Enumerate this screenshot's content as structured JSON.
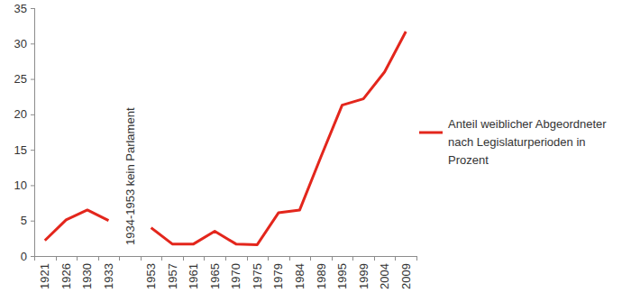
{
  "chart_data": {
    "type": "line",
    "annotation": "1934-1953 kein Parlament",
    "categories": [
      "1921",
      "1926",
      "1930",
      "1933",
      null,
      "1953",
      "1957",
      "1961",
      "1965",
      "1970",
      "1975",
      "1979",
      "1984",
      "1989",
      "1995",
      "1999",
      "2004",
      "2009"
    ],
    "series": [
      {
        "name": "Anteil weiblicher Abgeordneter nach Legislaturperioden in Prozent",
        "color": "#e3261c",
        "values": [
          2.2,
          5.1,
          6.5,
          5.0,
          null,
          4.0,
          1.7,
          1.7,
          3.5,
          1.7,
          1.6,
          6.1,
          6.5,
          14.0,
          21.3,
          22.2,
          26.0,
          31.7
        ]
      }
    ],
    "ylim": [
      0,
      35
    ],
    "yticks": [
      0,
      5,
      10,
      15,
      20,
      25,
      30,
      35
    ],
    "grid": false,
    "legend": "right"
  }
}
